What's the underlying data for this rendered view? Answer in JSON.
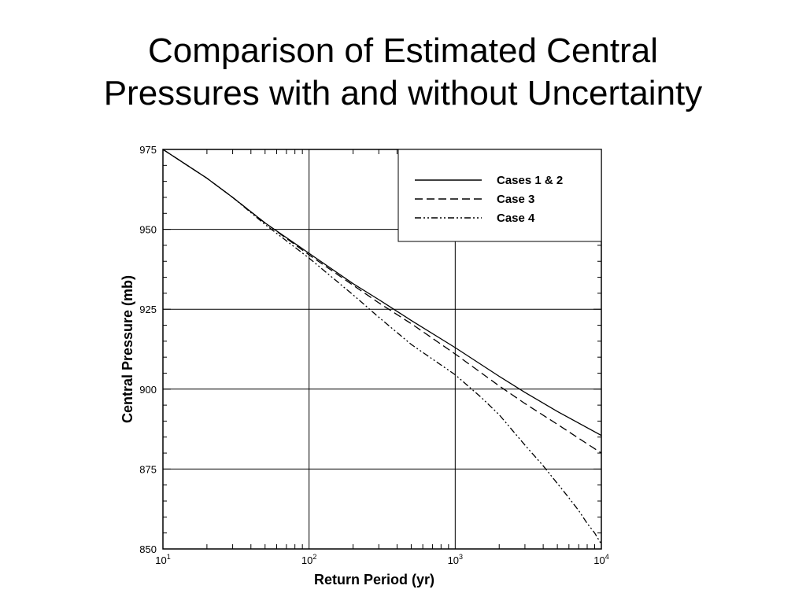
{
  "slide": {
    "title_line1": "Comparison of Estimated Central",
    "title_line2": "Pressures with and without Uncertainty"
  },
  "chart_data": {
    "type": "line",
    "title": "Comparison of Estimated Central Pressures with and without Uncertainty",
    "xlabel": "Return Period (yr)",
    "ylabel": "Central Pressure (mb)",
    "x_scale": "log",
    "xlim": [
      10,
      10000
    ],
    "ylim": [
      850,
      975
    ],
    "x_ticks": [
      10,
      100,
      1000,
      10000
    ],
    "x_tick_labels": [
      {
        "base": "10",
        "exp": "1"
      },
      {
        "base": "10",
        "exp": "2"
      },
      {
        "base": "10",
        "exp": "3"
      },
      {
        "base": "10",
        "exp": "4"
      }
    ],
    "y_ticks": [
      850,
      875,
      900,
      925,
      950,
      975
    ],
    "grid": true,
    "legend_position": "top-right",
    "series": [
      {
        "name": "Cases 1 & 2",
        "style": "solid",
        "x": [
          10,
          20,
          30,
          50,
          100,
          200,
          300,
          500,
          1000,
          2000,
          3000,
          5000,
          10000
        ],
        "y": [
          975,
          966,
          960,
          952,
          942.5,
          933,
          928,
          921.5,
          913,
          904,
          899,
          893,
          885.5
        ]
      },
      {
        "name": "Case 3",
        "style": "dashed",
        "x": [
          10,
          20,
          30,
          50,
          100,
          200,
          300,
          500,
          1000,
          2000,
          3000,
          5000,
          10000
        ],
        "y": [
          975,
          966,
          960,
          952,
          942,
          932.5,
          927,
          920.5,
          911,
          901,
          895.5,
          889,
          880
        ]
      },
      {
        "name": "Case 4",
        "style": "dash-dot-dot",
        "x": [
          10,
          20,
          30,
          50,
          100,
          200,
          300,
          500,
          1000,
          1500,
          2000,
          3000,
          4000,
          5000,
          6000,
          7000,
          8000,
          9000,
          10000
        ],
        "y": [
          975,
          966,
          960,
          951.5,
          941,
          929.5,
          922.5,
          914,
          904.5,
          897.5,
          892,
          882.5,
          876,
          870.5,
          866,
          862,
          858,
          855,
          851.5
        ]
      }
    ]
  }
}
